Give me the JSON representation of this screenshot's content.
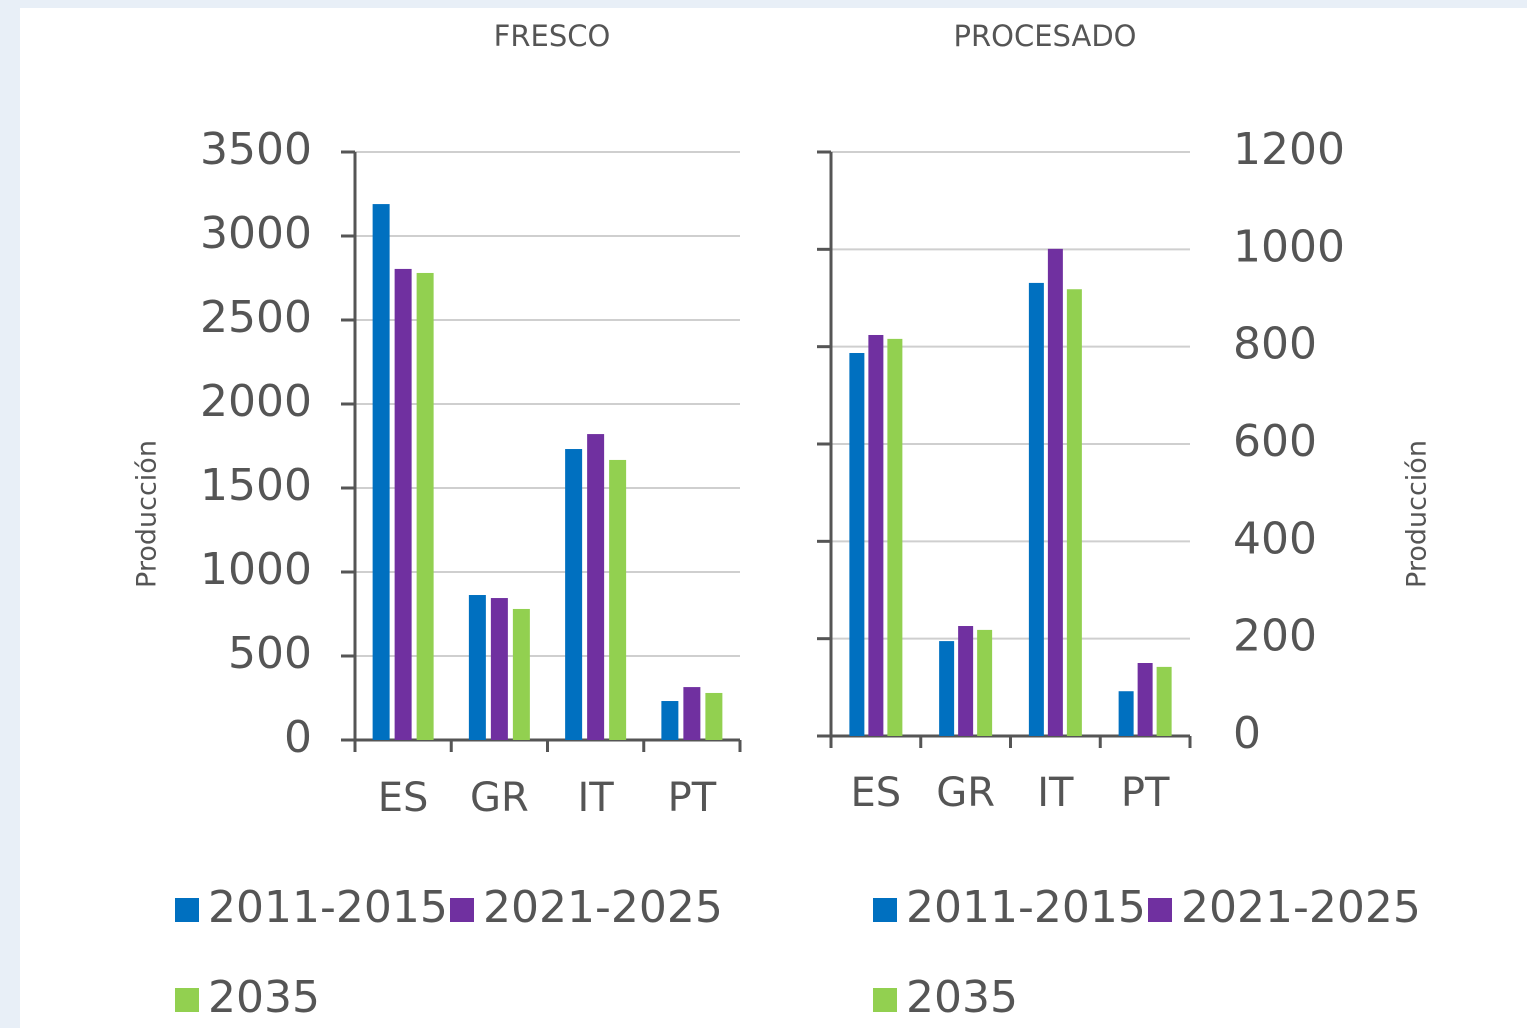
{
  "chart_data": [
    {
      "type": "bar",
      "title": "FRESCO",
      "y_label": "Producción",
      "y_axis_position": "left",
      "categories": [
        "ES",
        "GR",
        "IT",
        "PT"
      ],
      "series": [
        {
          "name": "2011-2015",
          "color": "#0070c0",
          "values": [
            3190,
            863,
            1732,
            232
          ]
        },
        {
          "name": "2021-2025",
          "color": "#7030a0",
          "values": [
            2804,
            845,
            1821,
            315
          ]
        },
        {
          "name": "2035",
          "color": "#92d050",
          "values": [
            2780,
            780,
            1667,
            280
          ]
        }
      ],
      "ylim": [
        0,
        3500
      ],
      "yticks": [
        0,
        500,
        1000,
        1500,
        2000,
        2500,
        3000,
        3500
      ],
      "grid": true
    },
    {
      "type": "bar",
      "title": "PROCESADO",
      "y_label": "Producción",
      "y_axis_position": "right",
      "categories": [
        "ES",
        "GR",
        "IT",
        "PT"
      ],
      "series": [
        {
          "name": "2011-2015",
          "color": "#0070c0",
          "values": [
            787,
            195,
            931,
            92
          ]
        },
        {
          "name": "2021-2025",
          "color": "#7030a0",
          "values": [
            824,
            226,
            1001,
            150
          ]
        },
        {
          "name": "2035",
          "color": "#92d050",
          "values": [
            816,
            218,
            918,
            142
          ]
        }
      ],
      "ylim": [
        0,
        1200
      ],
      "yticks": [
        0,
        200,
        400,
        600,
        800,
        1000,
        1200
      ],
      "grid": true
    }
  ]
}
